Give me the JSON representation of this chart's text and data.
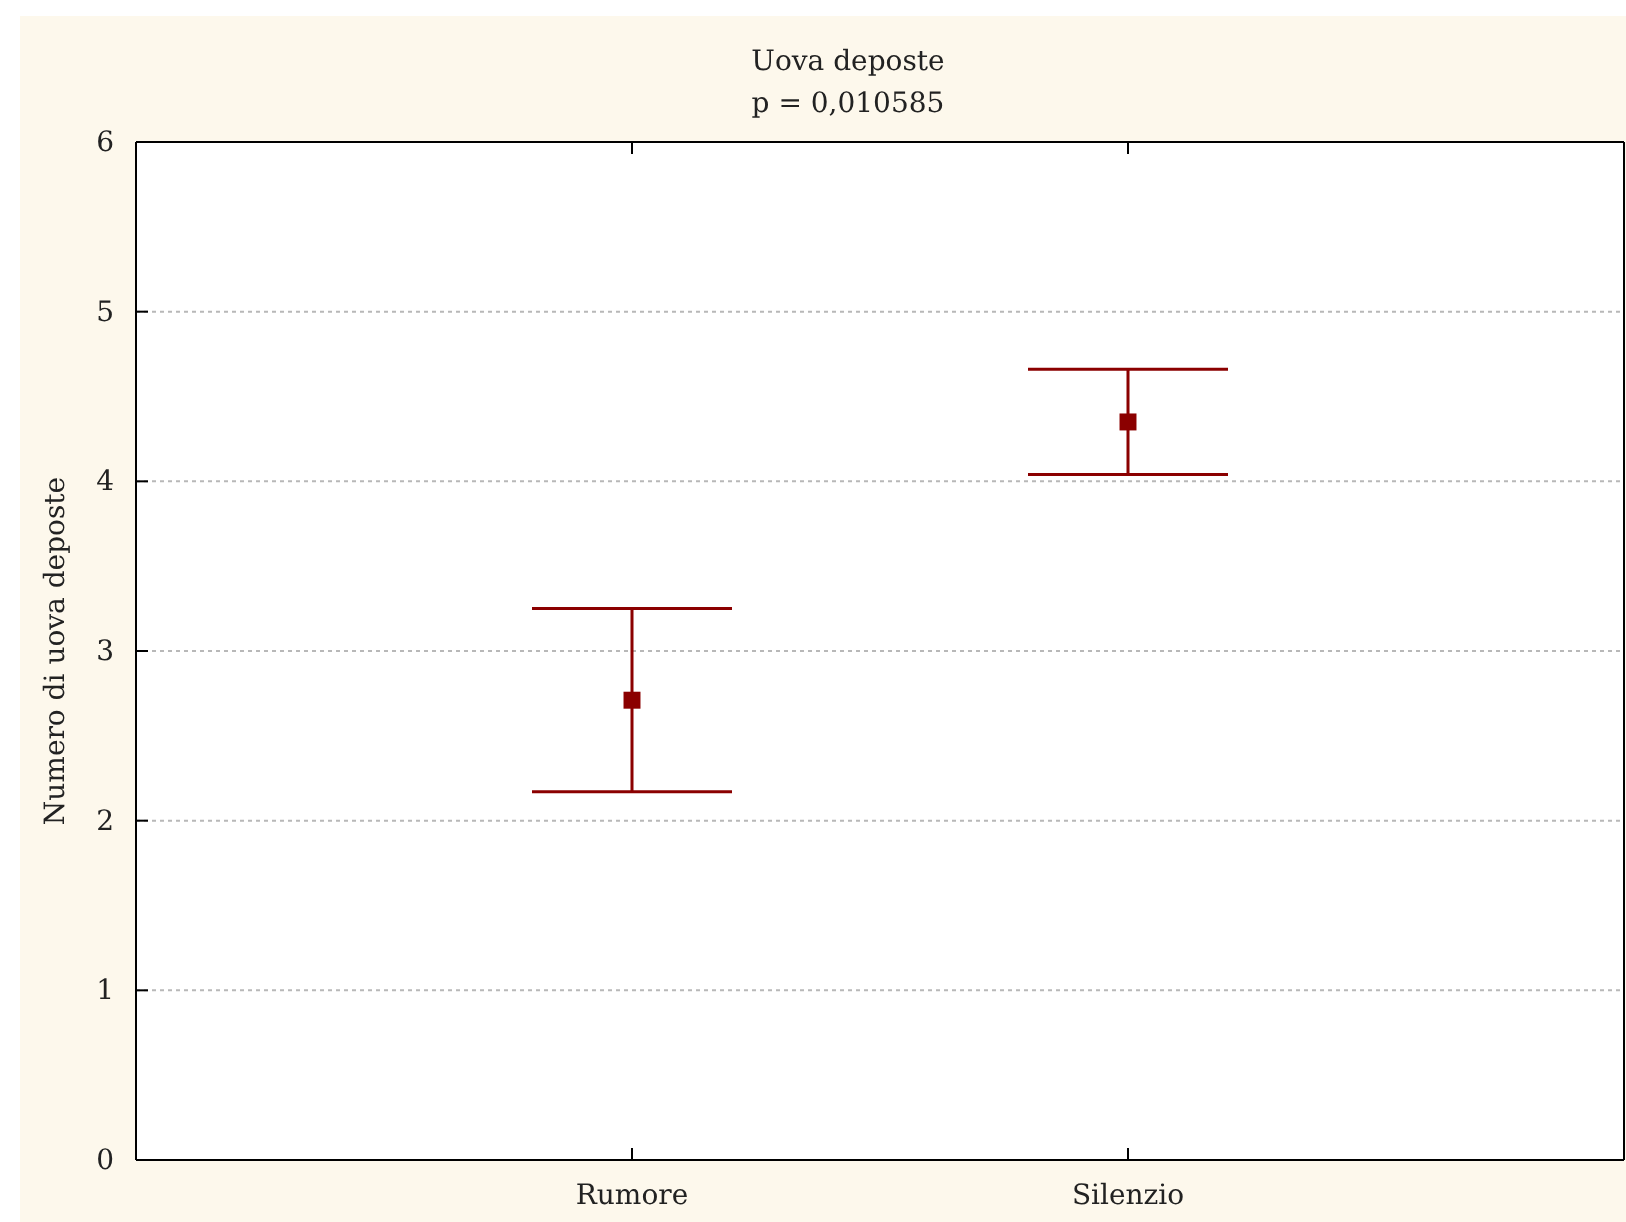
{
  "chart_data": {
    "type": "scatter",
    "title": "Uova deposte",
    "subtitle": "p = 0,010585",
    "ylabel": "Numero di uova deposte",
    "categories": [
      "Rumore",
      "Silenzio"
    ],
    "values": [
      2.71,
      4.35
    ],
    "errors": [
      0.54,
      0.31
    ],
    "color": "#8b0000",
    "ylim": [
      0,
      6
    ],
    "yticks": [
      0,
      1,
      2,
      3,
      4,
      5,
      6
    ],
    "grid": "y",
    "marker": "square"
  }
}
